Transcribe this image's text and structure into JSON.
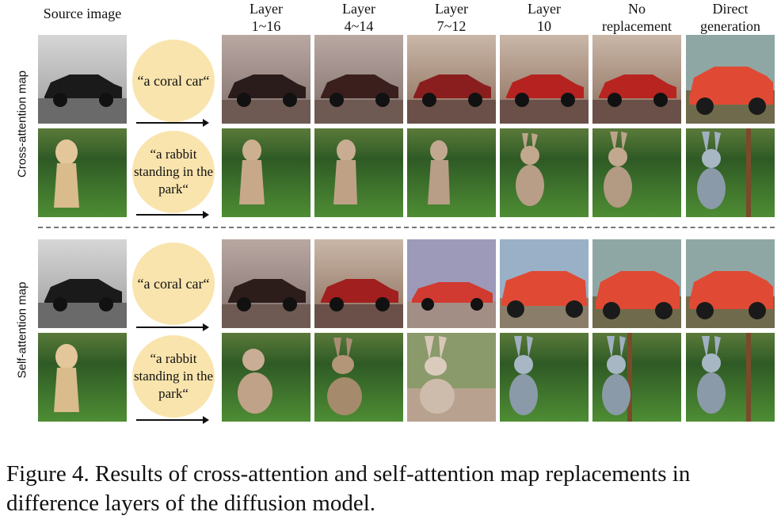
{
  "headers": {
    "source": "Source image",
    "columns": [
      "Layer\n1~16",
      "Layer\n4~14",
      "Layer\n7~12",
      "Layer\n10",
      "No\nreplacement",
      "Direct\ngeneration"
    ]
  },
  "sections": [
    {
      "label": "Cross-attention map"
    },
    {
      "label": "Self-attention map"
    }
  ],
  "prompts": {
    "car": "“a coral car“",
    "rabbit": "“a rabbit standing in the park“"
  },
  "caption": "Figure 4. Results of cross-attention and self-attention map replacements in difference layers of the diffusion model.",
  "colors": {
    "prompt_bg": "#f9e4ad",
    "grass": "#3f7a2a",
    "sky": "#c7cbd2",
    "coral": "#e04a34"
  }
}
